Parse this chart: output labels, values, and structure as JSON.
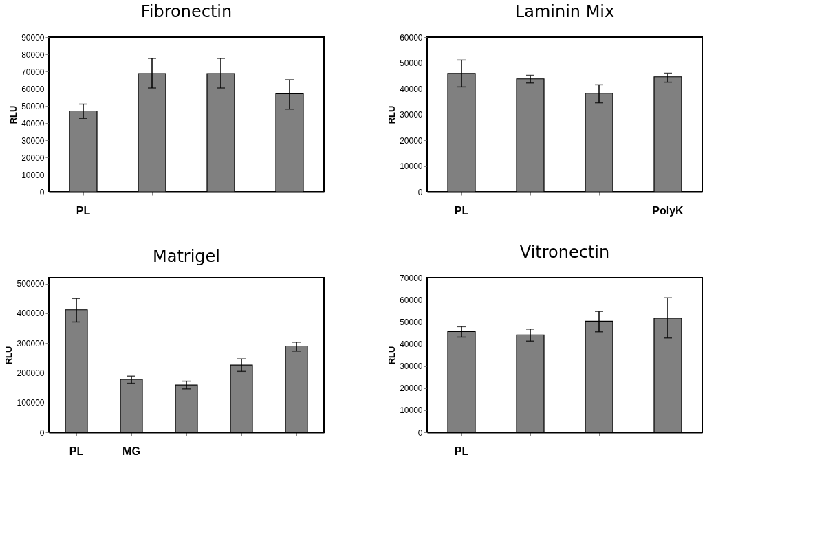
{
  "chart_data": [
    {
      "type": "bar",
      "title": "Fibronectin",
      "ylabel": "RLU",
      "categories": [
        "PL",
        null,
        null,
        null
      ],
      "values": [
        47000,
        68800,
        68800,
        57000
      ],
      "errors": [
        [
          42700,
          51000
        ],
        [
          60400,
          77600
        ],
        [
          60400,
          77600
        ],
        [
          48100,
          65200
        ]
      ],
      "color": "#808080",
      "ylim": [
        0,
        90000
      ],
      "yticks": [
        0,
        10000,
        20000,
        30000,
        40000,
        50000,
        60000,
        70000,
        80000,
        90000
      ],
      "grid": false
    },
    {
      "type": "bar",
      "title": "Laminin Mix",
      "ylabel": "RLU",
      "categories": [
        "PL",
        null,
        null,
        "PolyK"
      ],
      "values": [
        45900,
        43800,
        38200,
        44600
      ],
      "errors": [
        [
          40700,
          51100
        ],
        [
          42200,
          45200
        ],
        [
          34500,
          41500
        ],
        [
          42500,
          46000
        ]
      ],
      "color": "#808080",
      "ylim": [
        0,
        60000
      ],
      "yticks": [
        0,
        10000,
        20000,
        30000,
        40000,
        50000,
        60000
      ],
      "grid": false
    },
    {
      "type": "bar",
      "title": "Matrigel",
      "ylabel": "RLU",
      "categories": [
        "PL",
        "MG",
        null,
        null,
        null
      ],
      "values": [
        412000,
        178000,
        159000,
        226000,
        290000
      ],
      "errors": [
        [
          371000,
          450000
        ],
        [
          165000,
          189000
        ],
        [
          146000,
          172000
        ],
        [
          205000,
          247000
        ],
        [
          273000,
          303000
        ]
      ],
      "color": "#808080",
      "ylim": [
        0,
        520000
      ],
      "yticks": [
        0,
        100000,
        200000,
        300000,
        400000,
        500000
      ],
      "grid": false
    },
    {
      "type": "bar",
      "title": "Vitronectin",
      "ylabel": "RLU",
      "categories": [
        "PL",
        null,
        null,
        null
      ],
      "values": [
        45600,
        44100,
        50300,
        51700
      ],
      "errors": [
        [
          43100,
          47800
        ],
        [
          41300,
          46700
        ],
        [
          45500,
          54700
        ],
        [
          42700,
          60900
        ]
      ],
      "color": "#808080",
      "ylim": [
        0,
        70000
      ],
      "yticks": [
        0,
        10000,
        20000,
        30000,
        40000,
        50000,
        60000,
        70000
      ],
      "grid": false
    }
  ]
}
